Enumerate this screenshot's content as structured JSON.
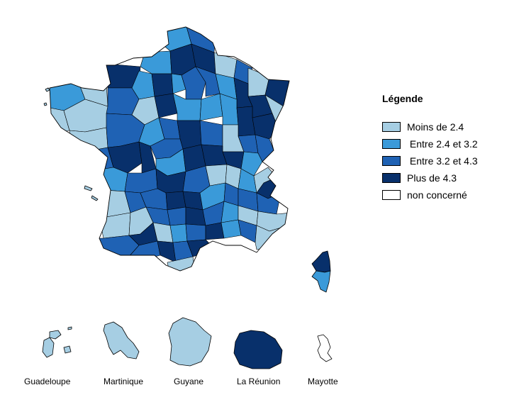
{
  "legend": {
    "title": "Légende",
    "items": [
      {
        "label": "Moins de 2.4",
        "color": "#a6cee3"
      },
      {
        "label": " Entre 2.4 et 3.2",
        "color": "#3a9ad9"
      },
      {
        "label": " Entre 3.2 et 4.3",
        "color": "#1f62b4"
      },
      {
        "label": "Plus de 4.3",
        "color": "#08306b"
      },
      {
        "label": "non concerné",
        "color": "#ffffff"
      }
    ]
  },
  "overseas": [
    {
      "label": "Guadeloupe",
      "category": 0
    },
    {
      "label": "Martinique",
      "category": 0
    },
    {
      "label": "Guyane",
      "category": 0
    },
    {
      "label": "La Réunion",
      "category": 3
    },
    {
      "label": "Mayotte",
      "category": 4
    }
  ],
  "regions": {
    "corse": [
      3,
      1
    ]
  }
}
